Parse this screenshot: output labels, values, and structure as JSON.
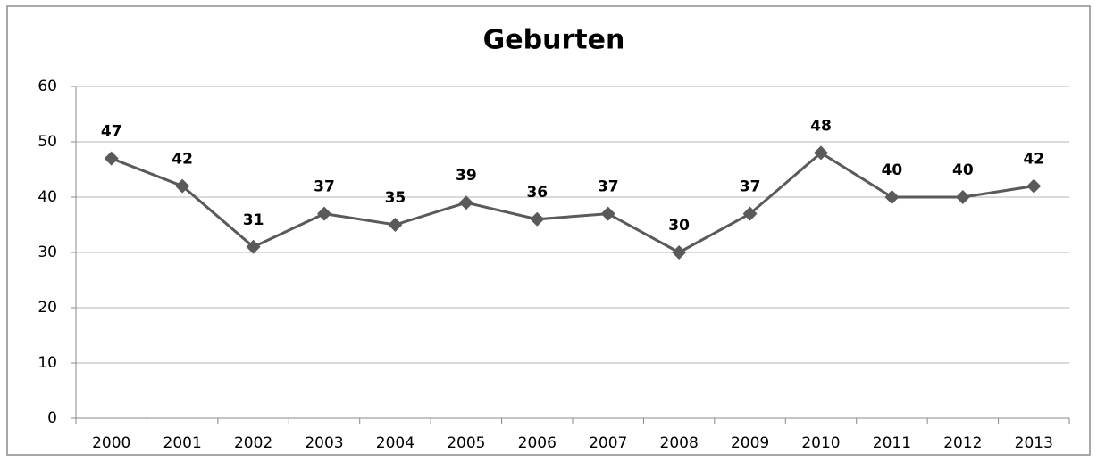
{
  "chart_data": {
    "type": "line",
    "title": "Geburten",
    "categories": [
      "2000",
      "2001",
      "2002",
      "2003",
      "2004",
      "2005",
      "2006",
      "2007",
      "2008",
      "2009",
      "2010",
      "2011",
      "2012",
      "2013"
    ],
    "values": [
      47,
      42,
      31,
      37,
      35,
      39,
      36,
      37,
      30,
      37,
      48,
      40,
      40,
      42
    ],
    "color": "#5a5a5a",
    "ylim": [
      0,
      60
    ],
    "yticks": [
      0,
      10,
      20,
      30,
      40,
      50,
      60
    ],
    "grid": true
  }
}
